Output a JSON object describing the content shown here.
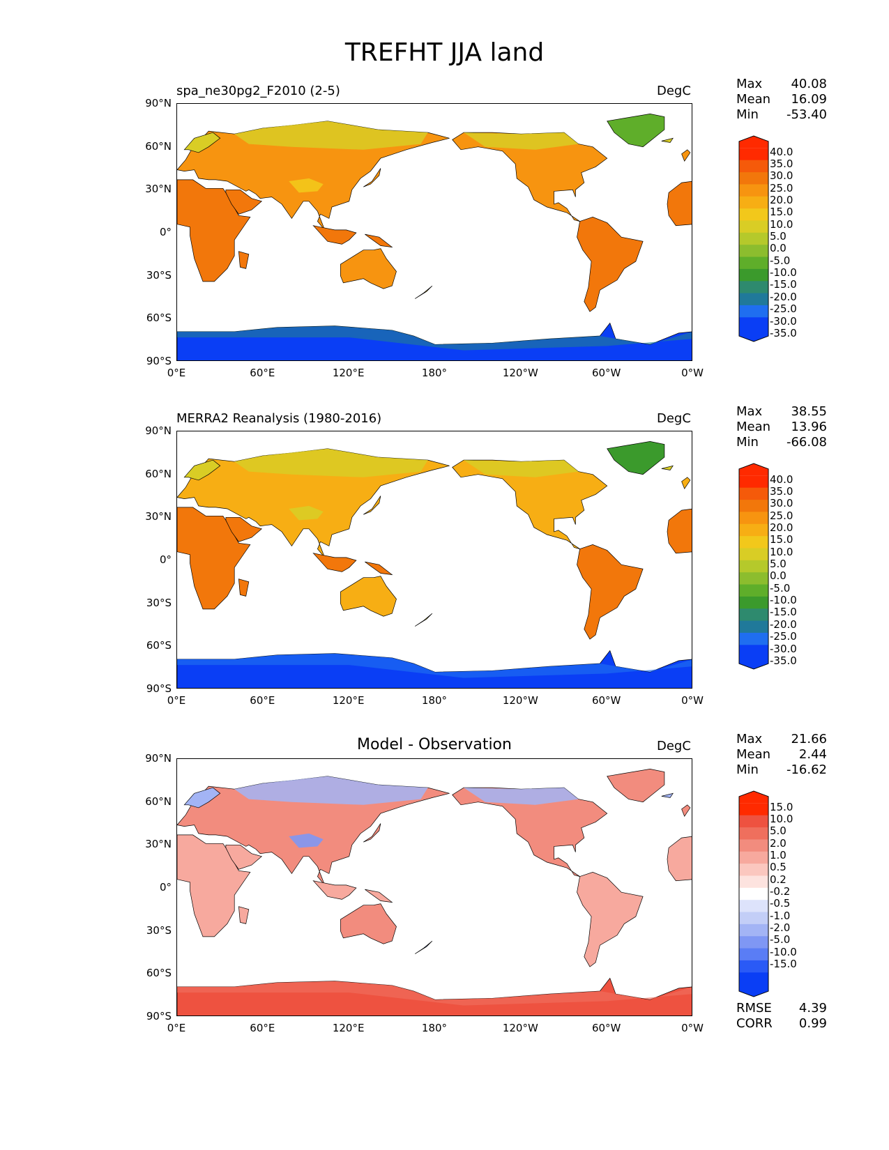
{
  "title": "TREFHT JJA land",
  "lat_ticks": [
    "90°N",
    "60°N",
    "30°N",
    "0°",
    "30°S",
    "60°S",
    "90°S"
  ],
  "lon_ticks": [
    "0°E",
    "60°E",
    "120°E",
    "180°",
    "120°W",
    "60°W",
    "0°W"
  ],
  "colors": {
    "temp_scale": [
      "#0a3ef5",
      "#1f6ef0",
      "#20799a",
      "#2e8a6e",
      "#3b9a2c",
      "#5fae2a",
      "#8cbd2e",
      "#b5c92b",
      "#d9cd25",
      "#f2c81b",
      "#f7ae14",
      "#f79410",
      "#f2770b",
      "#f55a0a",
      "#ff2a00"
    ],
    "diff_scale": [
      "#0a3ef5",
      "#2a5af6",
      "#5a7df5",
      "#7f97f4",
      "#a3b4f5",
      "#c3cef7",
      "#dde3fb",
      "#ffffff",
      "#fde3df",
      "#fbc7bf",
      "#f7a99e",
      "#f28c7e",
      "#ef6f5d",
      "#ee5240",
      "#ff2a00"
    ],
    "ocean": "#ffffff"
  },
  "panels": [
    {
      "left_title": "spa_ne30pg2_F2010 (2-5)",
      "center_title": "",
      "units": "DegC",
      "stats": [
        {
          "label": "Max",
          "value": "40.08"
        },
        {
          "label": "Mean",
          "value": "16.09"
        },
        {
          "label": "Min",
          "value": "-53.40"
        }
      ],
      "colorbar_labels": [
        "40.0",
        "35.0",
        "30.0",
        "25.0",
        "20.0",
        "15.0",
        "10.0",
        "5.0",
        "0.0",
        "-5.0",
        "-10.0",
        "-15.0",
        "-20.0",
        "-25.0",
        "-30.0",
        "-35.0"
      ],
      "scale": "temp",
      "fills": {
        "tropics": "#f2770b",
        "midlat": "#f79410",
        "boreal": "#d9cd25",
        "greenland": "#5fae2a",
        "antarctic": "#0a3ef5",
        "antarctic_edge": "#20799a",
        "highland": "#f2c81b"
      }
    },
    {
      "left_title": "MERRA2 Reanalysis (1980-2016)",
      "center_title": "",
      "units": "DegC",
      "stats": [
        {
          "label": "Max",
          "value": "38.55"
        },
        {
          "label": "Mean",
          "value": "13.96"
        },
        {
          "label": "Min",
          "value": "-66.08"
        }
      ],
      "colorbar_labels": [
        "40.0",
        "35.0",
        "30.0",
        "25.0",
        "20.0",
        "15.0",
        "10.0",
        "5.0",
        "0.0",
        "-5.0",
        "-10.0",
        "-15.0",
        "-20.0",
        "-25.0",
        "-30.0",
        "-35.0"
      ],
      "scale": "temp",
      "fills": {
        "tropics": "#f2770b",
        "midlat": "#f7ae14",
        "boreal": "#d9cd25",
        "greenland": "#3b9a2c",
        "antarctic": "#0a3ef5",
        "antarctic_edge": "#1f6ef0",
        "highland": "#d9cd25"
      }
    },
    {
      "left_title": "",
      "center_title": "Model - Observation",
      "units": "DegC",
      "stats": [
        {
          "label": "Max",
          "value": "21.66"
        },
        {
          "label": "Mean",
          "value": "2.44"
        },
        {
          "label": "Min",
          "value": "-16.62"
        }
      ],
      "colorbar_labels": [
        "15.0",
        "10.0",
        "5.0",
        "2.0",
        "1.0",
        "0.5",
        "0.2",
        "-0.2",
        "-0.5",
        "-1.0",
        "-2.0",
        "-5.0",
        "-10.0",
        "-15.0"
      ],
      "scale": "diff",
      "fills": {
        "tropics": "#f7a99e",
        "midlat": "#f28c7e",
        "boreal": "#a3b4f5",
        "greenland": "#f28c7e",
        "antarctic": "#ee5240",
        "antarctic_edge": "#ef6f5d",
        "highland": "#7f97f4"
      },
      "bottom_stats": [
        {
          "label": "RMSE",
          "value": "4.39"
        },
        {
          "label": "CORR",
          "value": "0.99"
        }
      ]
    }
  ]
}
